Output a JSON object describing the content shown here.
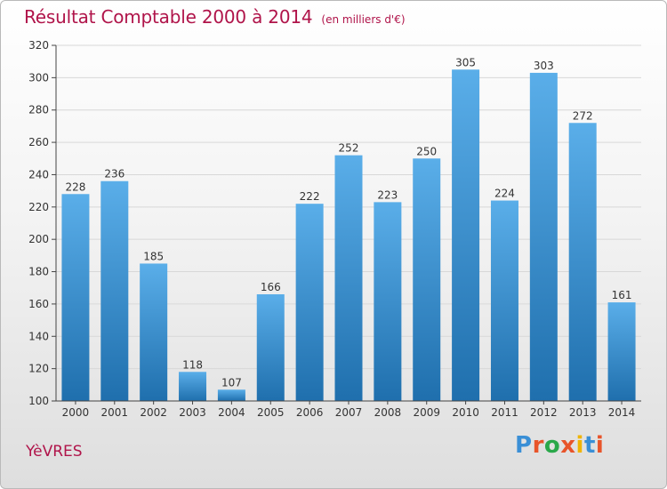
{
  "header": {
    "title": "Résultat Comptable 2000 à 2014",
    "unit": "(en milliers d'€)"
  },
  "footer": {
    "town": "YèVRES",
    "logo": "Proxiti"
  },
  "colors": {
    "title": "#b0144a",
    "bar_top": "#5aaee9",
    "bar_bottom": "#1f6fad",
    "grid": "#d8d8d8"
  },
  "chart_data": {
    "type": "bar",
    "title": "Résultat Comptable 2000 à 2014",
    "subtitle": "(en milliers d'€)",
    "xlabel": "",
    "ylabel": "",
    "categories": [
      "2000",
      "2001",
      "2002",
      "2003",
      "2004",
      "2005",
      "2006",
      "2007",
      "2008",
      "2009",
      "2010",
      "2011",
      "2012",
      "2013",
      "2014"
    ],
    "values": [
      228,
      236,
      185,
      118,
      107,
      166,
      222,
      252,
      223,
      250,
      305,
      224,
      303,
      272,
      161
    ],
    "ylim": [
      100,
      320
    ],
    "yticks": [
      100,
      120,
      140,
      160,
      180,
      200,
      220,
      240,
      260,
      280,
      300,
      320
    ],
    "grid": true,
    "legend": "none"
  }
}
